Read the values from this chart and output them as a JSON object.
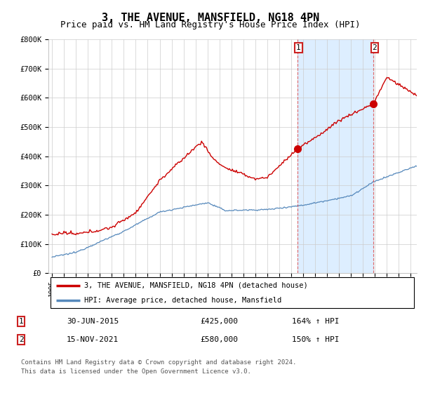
{
  "title": "3, THE AVENUE, MANSFIELD, NG18 4PN",
  "subtitle": "Price paid vs. HM Land Registry's House Price Index (HPI)",
  "ylim": [
    0,
    800000
  ],
  "yticks": [
    0,
    100000,
    200000,
    300000,
    400000,
    500000,
    600000,
    700000,
    800000
  ],
  "ytick_labels": [
    "£0",
    "£100K",
    "£200K",
    "£300K",
    "£400K",
    "£500K",
    "£600K",
    "£700K",
    "£800K"
  ],
  "xlim_start": 1994.7,
  "xlim_end": 2025.5,
  "red_line_color": "#cc0000",
  "blue_line_color": "#5588bb",
  "shade_color": "#ddeeff",
  "sale1_date": 2015.5,
  "sale1_price": 425000,
  "sale2_date": 2021.875,
  "sale2_price": 580000,
  "legend_line1": "3, THE AVENUE, MANSFIELD, NG18 4PN (detached house)",
  "legend_line2": "HPI: Average price, detached house, Mansfield",
  "footnote1": "Contains HM Land Registry data © Crown copyright and database right 2024.",
  "footnote2": "This data is licensed under the Open Government Licence v3.0.",
  "table_row1": [
    "1",
    "30-JUN-2015",
    "£425,000",
    "164% ↑ HPI"
  ],
  "table_row2": [
    "2",
    "15-NOV-2021",
    "£580,000",
    "150% ↑ HPI"
  ],
  "grid_color": "#cccccc",
  "title_fontsize": 11,
  "subtitle_fontsize": 9,
  "axis_fontsize": 7.5
}
